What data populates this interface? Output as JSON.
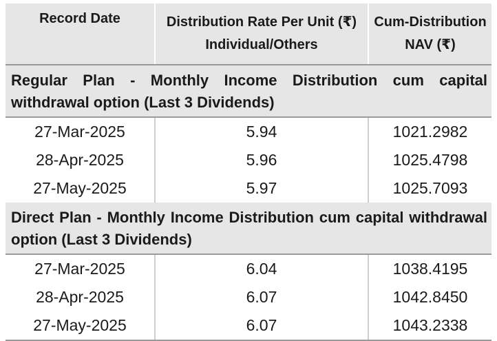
{
  "header": {
    "col1": "Record Date",
    "col2_line1": "Distribution Rate Per Unit (₹)",
    "col2_line2": "Individual/Others",
    "col3_line1": "Cum-Distribution",
    "col3_line2": "NAV (₹)"
  },
  "sections": [
    {
      "title": "Regular Plan - Monthly Income Distribution cum capital withdrawal option (Last 3 Dividends)",
      "rows": [
        {
          "date": "27-Mar-2025",
          "rate": "5.94",
          "nav": "1021.2982"
        },
        {
          "date": "28-Apr-2025",
          "rate": "5.96",
          "nav": "1025.4798"
        },
        {
          "date": "27-May-2025",
          "rate": "5.97",
          "nav": "1025.7093"
        }
      ]
    },
    {
      "title": "Direct Plan - Monthly Income Distribution cum capital withdrawal option (Last 3 Dividends)",
      "rows": [
        {
          "date": "27-Mar-2025",
          "rate": "6.04",
          "nav": "1038.4195"
        },
        {
          "date": "28-Apr-2025",
          "rate": "6.07",
          "nav": "1042.8450"
        },
        {
          "date": "27-May-2025",
          "rate": "6.07",
          "nav": "1043.2338"
        }
      ]
    }
  ]
}
